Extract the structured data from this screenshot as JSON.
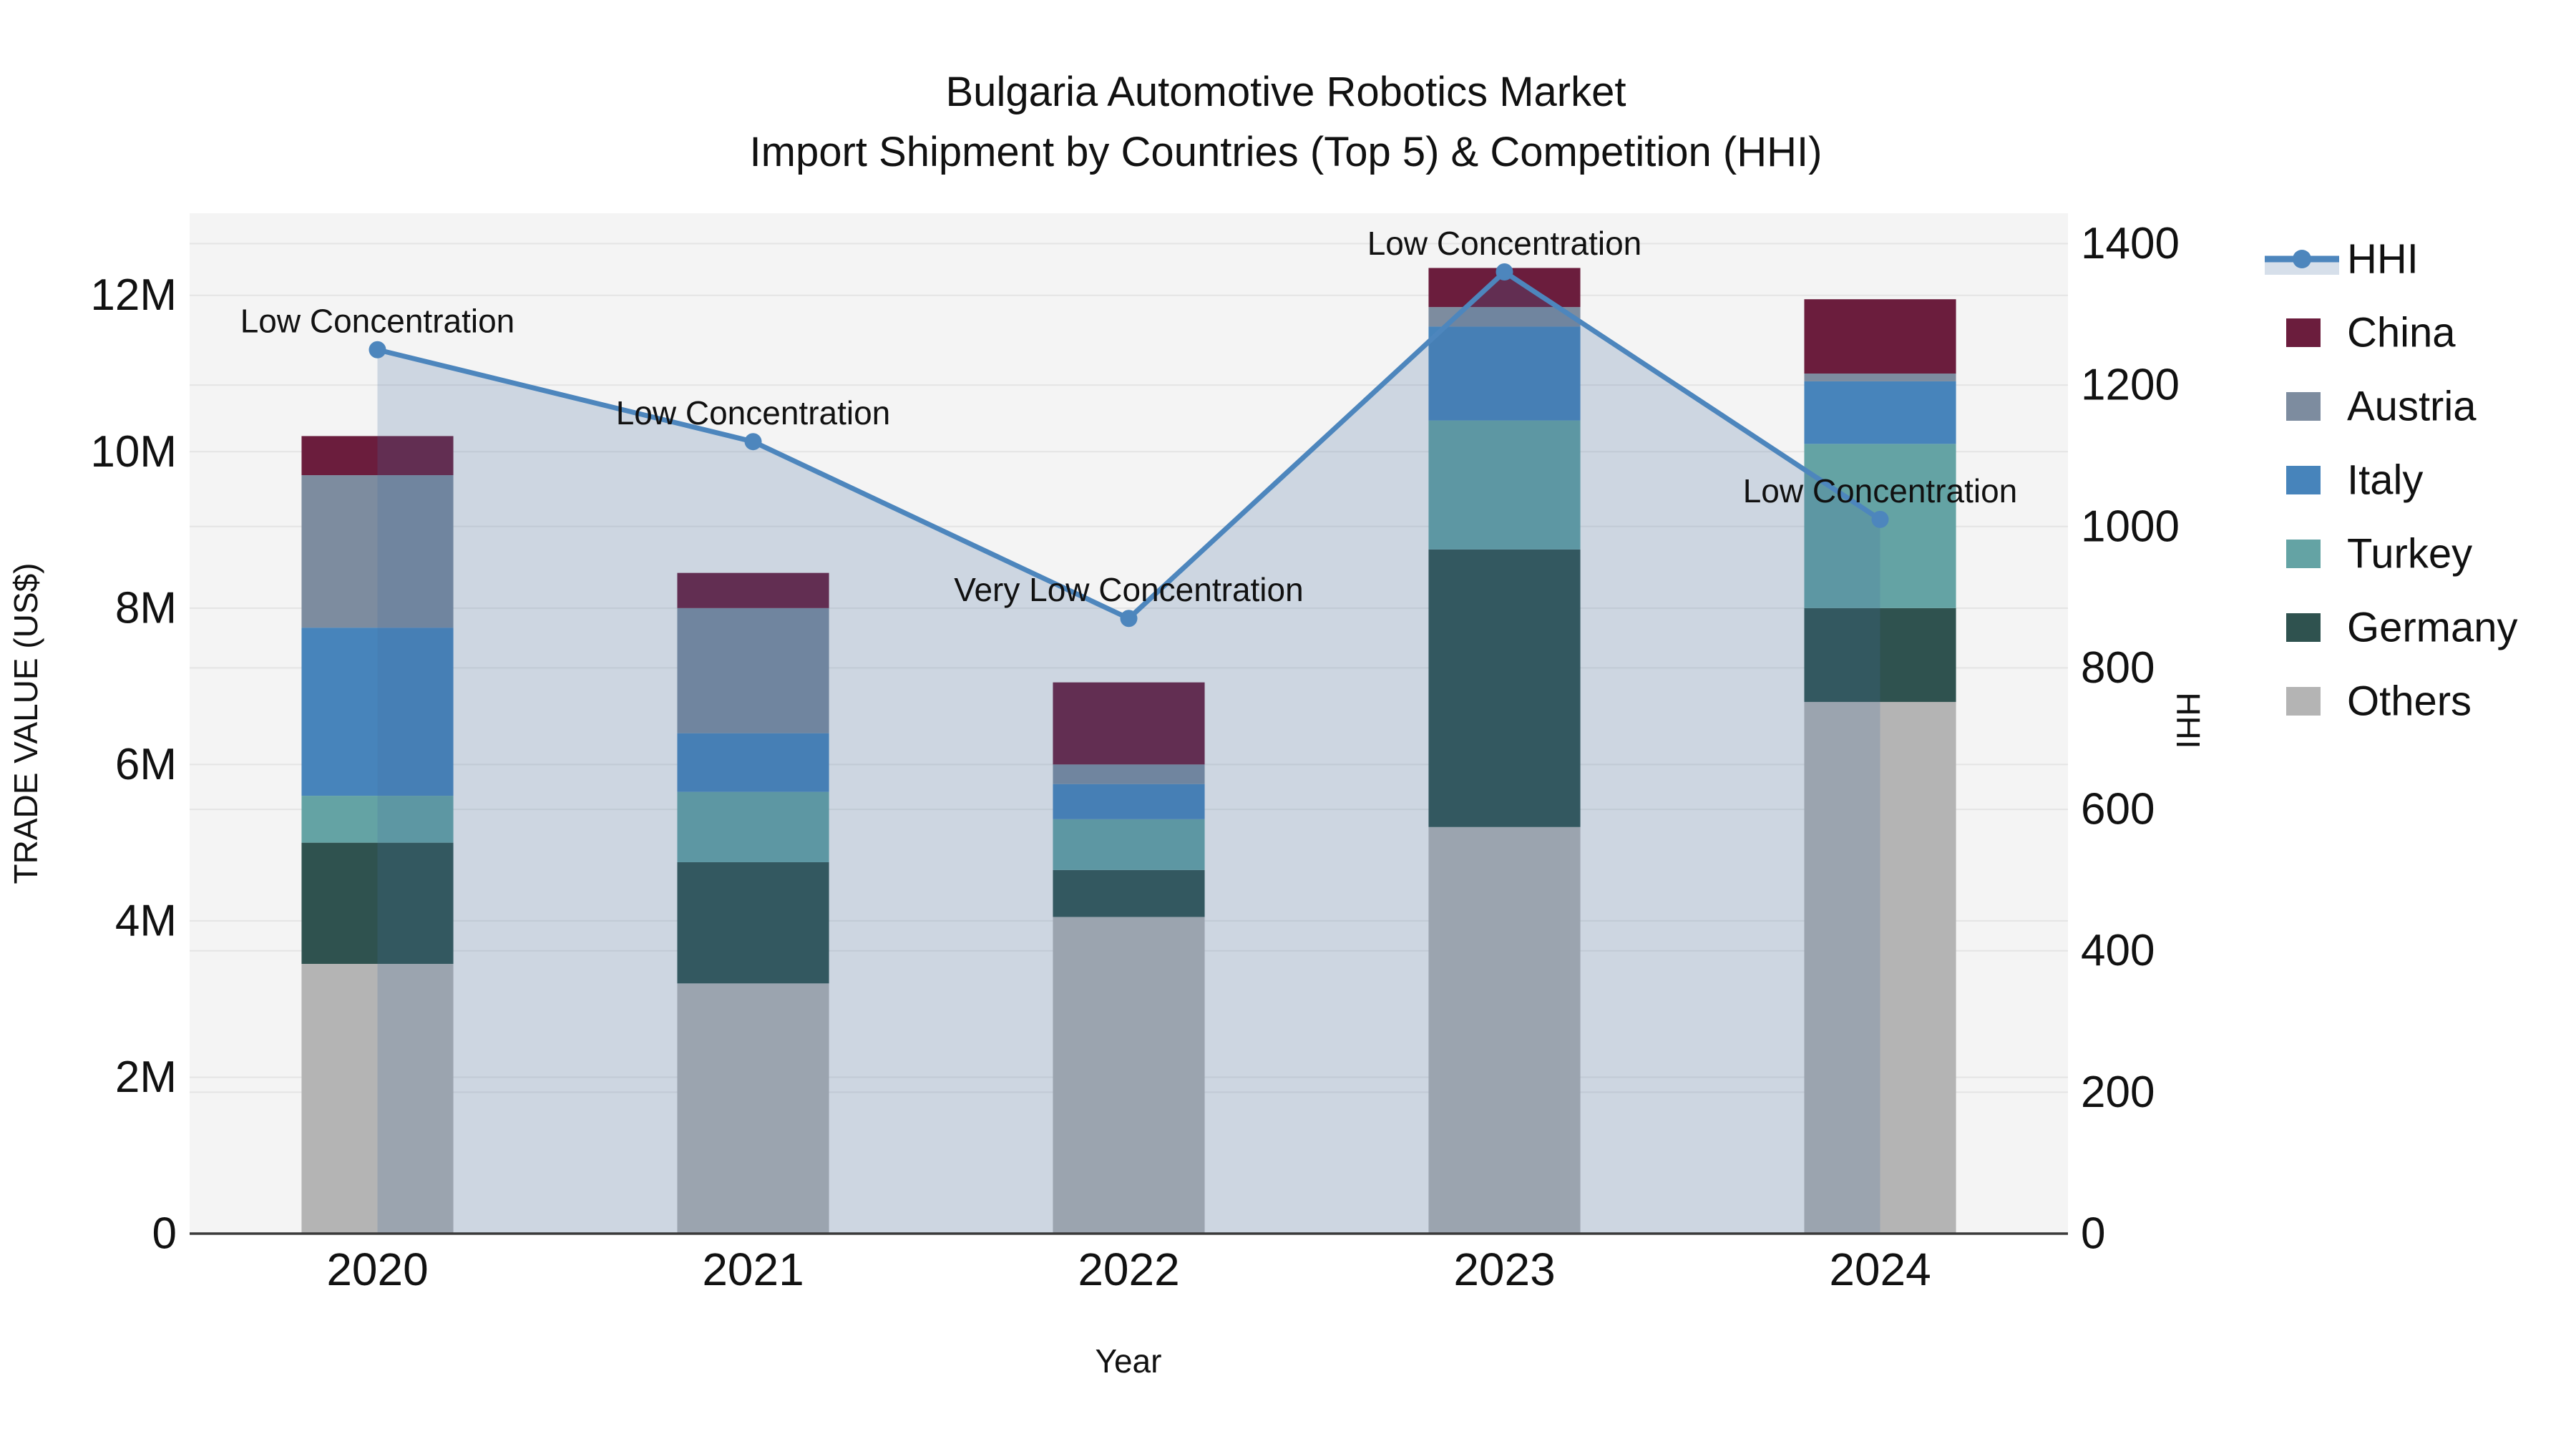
{
  "title": {
    "line1": "Bulgaria Automotive Robotics Market",
    "line2": "Import Shipment by Countries (Top 5) & Competition (HHI)"
  },
  "chart_data": {
    "type": "bar",
    "subtype": "stacked-bar-with-line",
    "categories": [
      "2020",
      "2021",
      "2022",
      "2023",
      "2024"
    ],
    "unit": "million US$",
    "bar_series": [
      {
        "name": "Others",
        "color": "#b4b4b4",
        "values": [
          3.45,
          3.2,
          4.05,
          5.2,
          6.8
        ]
      },
      {
        "name": "Germany",
        "color": "#2f524f",
        "values": [
          1.55,
          1.55,
          0.6,
          3.55,
          1.2
        ]
      },
      {
        "name": "Turkey",
        "color": "#64a3a4",
        "values": [
          0.6,
          0.9,
          0.65,
          1.65,
          2.1
        ]
      },
      {
        "name": "Italy",
        "color": "#4784bb",
        "values": [
          2.15,
          0.75,
          0.45,
          1.2,
          0.8
        ]
      },
      {
        "name": "Austria",
        "color": "#7d8c9f",
        "values": [
          1.95,
          1.6,
          0.25,
          0.25,
          0.1
        ]
      },
      {
        "name": "China",
        "color": "#6b1d3d",
        "values": [
          0.5,
          0.45,
          1.05,
          0.5,
          0.95
        ]
      }
    ],
    "line_series": {
      "name": "HHI",
      "color": "#4d86bd",
      "area_fill": "rgba(70,110,160,0.22)",
      "values": [
        1250,
        1120,
        870,
        1360,
        1010
      ]
    },
    "annotations": [
      {
        "category": "2020",
        "text": "Low Concentration"
      },
      {
        "category": "2021",
        "text": "Low Concentration"
      },
      {
        "category": "2022",
        "text": "Very Low Concentration"
      },
      {
        "category": "2023",
        "text": "Low Concentration"
      },
      {
        "category": "2024",
        "text": "Low Concentration"
      }
    ],
    "xlabel": "Year",
    "ylabel_left": "TRADE VALUE (US$)",
    "ylabel_right": "HHI",
    "yaxis_left": {
      "max_millions": 13.05,
      "ticks": [
        {
          "value": 0,
          "label": "0"
        },
        {
          "value": 2,
          "label": "2M"
        },
        {
          "value": 4,
          "label": "4M"
        },
        {
          "value": 6,
          "label": "6M"
        },
        {
          "value": 8,
          "label": "8M"
        },
        {
          "value": 10,
          "label": "10M"
        },
        {
          "value": 12,
          "label": "12M"
        }
      ]
    },
    "yaxis_right": {
      "max": 1443,
      "ticks": [
        {
          "value": 0,
          "label": "0"
        },
        {
          "value": 200,
          "label": "200"
        },
        {
          "value": 400,
          "label": "400"
        },
        {
          "value": 600,
          "label": "600"
        },
        {
          "value": 800,
          "label": "800"
        },
        {
          "value": 1000,
          "label": "1000"
        },
        {
          "value": 1200,
          "label": "1200"
        },
        {
          "value": 1400,
          "label": "1400"
        }
      ]
    },
    "legend_order": [
      "HHI",
      "China",
      "Austria",
      "Italy",
      "Turkey",
      "Germany",
      "Others"
    ],
    "legend_position": "right",
    "grid": true,
    "colors": {
      "plot_background": "#f4f4f4",
      "gridline": "#e4e4e4",
      "axis_line": "#3a3a3a",
      "text": "#111111"
    }
  }
}
